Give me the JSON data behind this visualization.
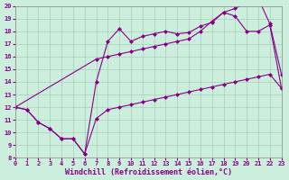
{
  "bg_color": "#cceedd",
  "line_color": "#880088",
  "xlim": [
    0,
    23
  ],
  "ylim": [
    8,
    20
  ],
  "xticks": [
    0,
    1,
    2,
    3,
    4,
    5,
    6,
    7,
    8,
    9,
    10,
    11,
    12,
    13,
    14,
    15,
    16,
    17,
    18,
    19,
    20,
    21,
    22,
    23
  ],
  "yticks": [
    8,
    9,
    10,
    11,
    12,
    13,
    14,
    15,
    16,
    17,
    18,
    19,
    20
  ],
  "line1_x": [
    0,
    1,
    2,
    3,
    4,
    5,
    6,
    7,
    8,
    9,
    10,
    11,
    12,
    13,
    14,
    15,
    16,
    17,
    18,
    19,
    20,
    21,
    22,
    23
  ],
  "line1_y": [
    12,
    11.8,
    10.8,
    10.3,
    9.5,
    9.5,
    8.3,
    11.1,
    11.8,
    12.0,
    12.2,
    12.4,
    12.6,
    12.8,
    13.0,
    13.2,
    13.4,
    13.6,
    13.8,
    14.0,
    14.2,
    14.4,
    14.6,
    13.5
  ],
  "line2_x": [
    0,
    1,
    2,
    3,
    4,
    5,
    6,
    7,
    8,
    9,
    10,
    11,
    12,
    13,
    14,
    15,
    16,
    17,
    18,
    19,
    20,
    21,
    22,
    23
  ],
  "line2_y": [
    12,
    11.8,
    10.8,
    10.3,
    9.5,
    9.5,
    8.3,
    14.0,
    17.2,
    18.2,
    17.2,
    17.6,
    17.8,
    18.0,
    17.8,
    17.9,
    18.4,
    18.7,
    19.5,
    19.8,
    20.3,
    20.6,
    18.6,
    14.6
  ],
  "line3_x": [
    0,
    7,
    8,
    9,
    10,
    11,
    12,
    13,
    14,
    15,
    16,
    17,
    18,
    19,
    20,
    21,
    22,
    23
  ],
  "line3_y": [
    12.0,
    15.8,
    16.0,
    16.2,
    16.4,
    16.6,
    16.8,
    17.0,
    17.2,
    17.4,
    18.0,
    18.8,
    19.5,
    19.2,
    18.0,
    18.0,
    18.5,
    13.5
  ],
  "marker": "D",
  "markersize": 2.0,
  "linewidth": 0.8,
  "grid_color": "#aaccbb",
  "tick_fontsize": 5.0,
  "xlabel": "Windchill (Refroidissement éolien,°C)",
  "xlabel_fontsize": 6.0
}
